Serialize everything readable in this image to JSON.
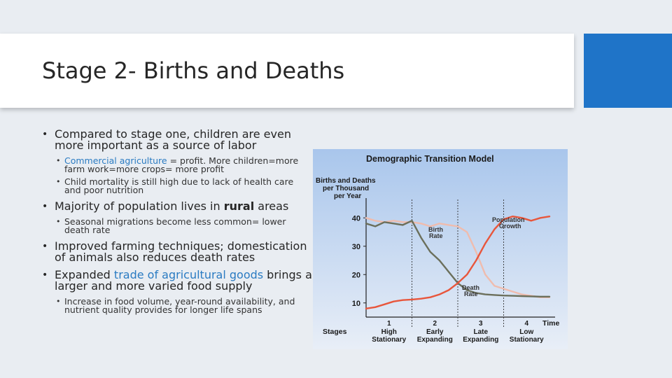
{
  "slide": {
    "title": "Stage 2- Births and Deaths",
    "accent_color": "#1f74c8"
  },
  "bullets": {
    "b1": {
      "text": "Compared to stage one, children are even more important as a source of labor"
    },
    "b1_subs": {
      "s1": {
        "hl": "Commercial agriculture",
        "rest": " = profit. More children=more farm work=more crops= more profit"
      },
      "s2": {
        "text": "Child mortality is still high due to lack of health care and poor nutrition"
      }
    },
    "b2": {
      "pre": "Majority of population lives in ",
      "bold": "rural",
      "post": " areas"
    },
    "b2_subs": {
      "s1": {
        "text": "Seasonal migrations become less common= lower death rate"
      }
    },
    "b3": {
      "text": "Improved farming techniques; domestication of animals also reduces death rates"
    },
    "b4": {
      "pre": "Expanded ",
      "hl": "trade of agricultural goods",
      "post": " brings a larger and more varied food supply"
    },
    "b4_subs": {
      "s1": {
        "text": "Increase in food volume, year-round availability, and nutrient quality provides for longer life spans"
      }
    }
  },
  "chart_data": {
    "type": "line",
    "title": "Demographic Transition Model",
    "ylabel": "Births and Deaths per Thousand per Year",
    "xlabel": "Time",
    "ylim": [
      5,
      45
    ],
    "yticks": [
      10,
      20,
      30,
      40
    ],
    "stages_label": "Stages",
    "stages": [
      {
        "num": "1",
        "name": "High Stationary"
      },
      {
        "num": "2",
        "name": "Early Expanding"
      },
      {
        "num": "3",
        "name": "Late Expanding"
      },
      {
        "num": "4",
        "name": "Low Stationary"
      }
    ],
    "x": [
      0,
      5,
      10,
      15,
      20,
      25,
      30,
      35,
      40,
      45,
      50,
      55,
      60,
      65,
      70,
      75,
      80,
      85,
      90,
      95,
      100
    ],
    "series": [
      {
        "name": "Birth Rate",
        "color": "#efbcae",
        "values": [
          40,
          39,
          38.5,
          39,
          38.5,
          38.5,
          38,
          37,
          38,
          37.5,
          37,
          35,
          28,
          20,
          16,
          15,
          14,
          13,
          12.5,
          12,
          12
        ]
      },
      {
        "name": "Death Rate",
        "color": "#6b6f5b",
        "values": [
          38,
          37,
          38.5,
          38,
          37.5,
          39,
          33,
          28,
          25,
          21,
          17,
          14.5,
          13.5,
          13,
          12.8,
          12.6,
          12.5,
          12.4,
          12.3,
          12.2,
          12.2
        ]
      },
      {
        "name": "Population Growth",
        "color": "#e8563c",
        "values": [
          8,
          8.5,
          9.5,
          10.5,
          11,
          11.2,
          11.5,
          12,
          13,
          14.5,
          17,
          20,
          25,
          31,
          36,
          39.5,
          40.5,
          40,
          39,
          40,
          40.5
        ]
      }
    ],
    "annotations": {
      "birth": {
        "text1": "Birth",
        "text2": "Rate"
      },
      "death": {
        "text1": "Death",
        "text2": "Rate"
      },
      "growth": {
        "text1": "Population",
        "text2": "Growth"
      }
    }
  }
}
